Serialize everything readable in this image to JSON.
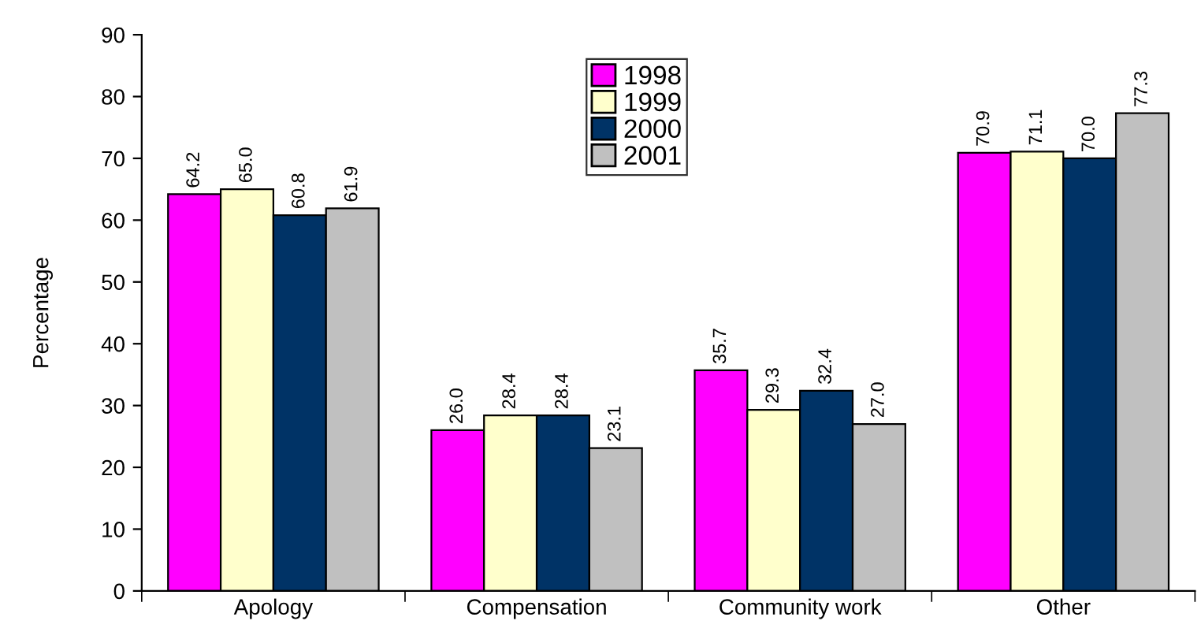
{
  "chart_data": {
    "type": "bar",
    "ylabel": "Percentage",
    "categories": [
      "Apology",
      "Compensation",
      "Community work",
      "Other"
    ],
    "series": [
      {
        "name": "1998",
        "color": "#ff00ff",
        "values": [
          64.2,
          26.0,
          35.7,
          70.9
        ],
        "value_labels": [
          "64.2",
          "26.0",
          "35.7",
          "70.9"
        ]
      },
      {
        "name": "1999",
        "color": "#ffffcc",
        "values": [
          65.0,
          28.4,
          29.3,
          71.1
        ],
        "value_labels": [
          "65.0",
          "28.4",
          "29.3",
          "71.1"
        ]
      },
      {
        "name": "2000",
        "color": "#003366",
        "values": [
          60.8,
          28.4,
          32.4,
          70.0
        ],
        "value_labels": [
          "60.8",
          "28.4",
          "32.4",
          "70.0"
        ]
      },
      {
        "name": "2001",
        "color": "#c0c0c0",
        "values": [
          61.9,
          23.1,
          27.0,
          77.3
        ],
        "value_labels": [
          "61.9",
          "23.1",
          "27.0",
          "77.3"
        ]
      }
    ],
    "ylim": [
      0,
      90
    ],
    "yticks": [
      0,
      10,
      20,
      30,
      40,
      50,
      60,
      70,
      80,
      90
    ],
    "grid": false,
    "legend": "top"
  }
}
